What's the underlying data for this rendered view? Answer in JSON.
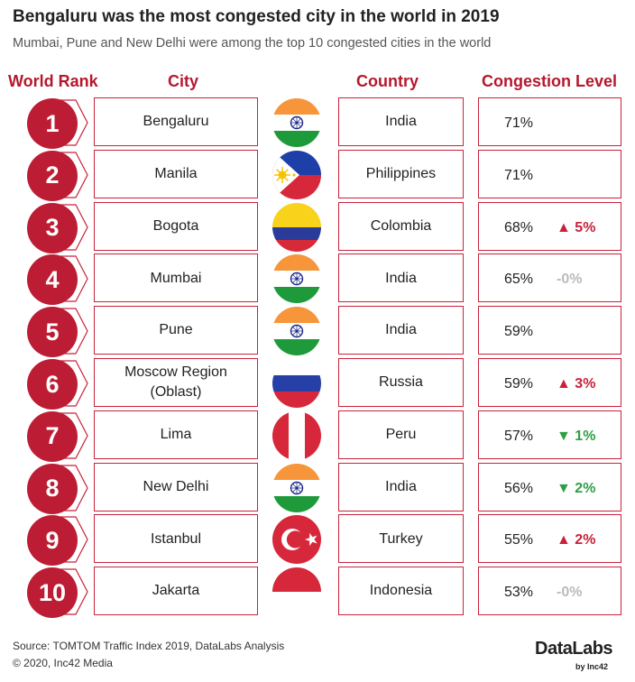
{
  "title": "Bengaluru was the most congested city in the world in 2019",
  "subtitle": "Mumbai, Pune and New Delhi were among the top 10 congested cities in the world",
  "headers": {
    "rank": "World Rank",
    "city": "City",
    "country": "Country",
    "level": "Congestion Level"
  },
  "colors": {
    "accent": "#bd1d34",
    "up": "#c8223a",
    "down": "#2ea043",
    "flat": "#bbbbbb"
  },
  "chart_data": {
    "type": "table",
    "columns": [
      "World Rank",
      "City",
      "Country",
      "Congestion Level"
    ],
    "rows": [
      {
        "rank": "1",
        "city": "Bengaluru",
        "country": "India",
        "flag": "india-flag-icon",
        "level": "71%",
        "level_value": 71,
        "change": "",
        "dir": "none"
      },
      {
        "rank": "2",
        "city": "Manila",
        "country": "Philippines",
        "flag": "philippines-flag-icon",
        "level": "71%",
        "level_value": 71,
        "change": "",
        "dir": "none"
      },
      {
        "rank": "3",
        "city": "Bogota",
        "country": "Colombia",
        "flag": "colombia-flag-icon",
        "level": "68%",
        "level_value": 68,
        "change": "5%",
        "dir": "up"
      },
      {
        "rank": "4",
        "city": "Mumbai",
        "country": "India",
        "flag": "india-flag-icon",
        "level": "65%",
        "level_value": 65,
        "change": "-0%",
        "dir": "flat"
      },
      {
        "rank": "5",
        "city": "Pune",
        "country": "India",
        "flag": "india-flag-icon",
        "level": "59%",
        "level_value": 59,
        "change": "",
        "dir": "none"
      },
      {
        "rank": "6",
        "city": "Moscow Region\n(Oblast)",
        "country": "Russia",
        "flag": "russia-flag-icon",
        "level": "59%",
        "level_value": 59,
        "change": "3%",
        "dir": "up"
      },
      {
        "rank": "7",
        "city": "Lima",
        "country": "Peru",
        "flag": "peru-flag-icon",
        "level": "57%",
        "level_value": 57,
        "change": "1%",
        "dir": "down"
      },
      {
        "rank": "8",
        "city": "New Delhi",
        "country": "India",
        "flag": "india-flag-icon",
        "level": "56%",
        "level_value": 56,
        "change": "2%",
        "dir": "down"
      },
      {
        "rank": "9",
        "city": "Istanbul",
        "country": "Turkey",
        "flag": "turkey-flag-icon",
        "level": "55%",
        "level_value": 55,
        "change": "2%",
        "dir": "up"
      },
      {
        "rank": "10",
        "city": "Jakarta",
        "country": "Indonesia",
        "flag": "indonesia-flag-icon",
        "level": "53%",
        "level_value": 53,
        "change": "-0%",
        "dir": "flat"
      }
    ]
  },
  "footer": {
    "source": "Source: TOMTOM Traffic Index 2019, DataLabs Analysis",
    "copyright": "© 2020, Inc42 Media",
    "brand": "DataLabs",
    "brand_sub": "by Inc42"
  }
}
